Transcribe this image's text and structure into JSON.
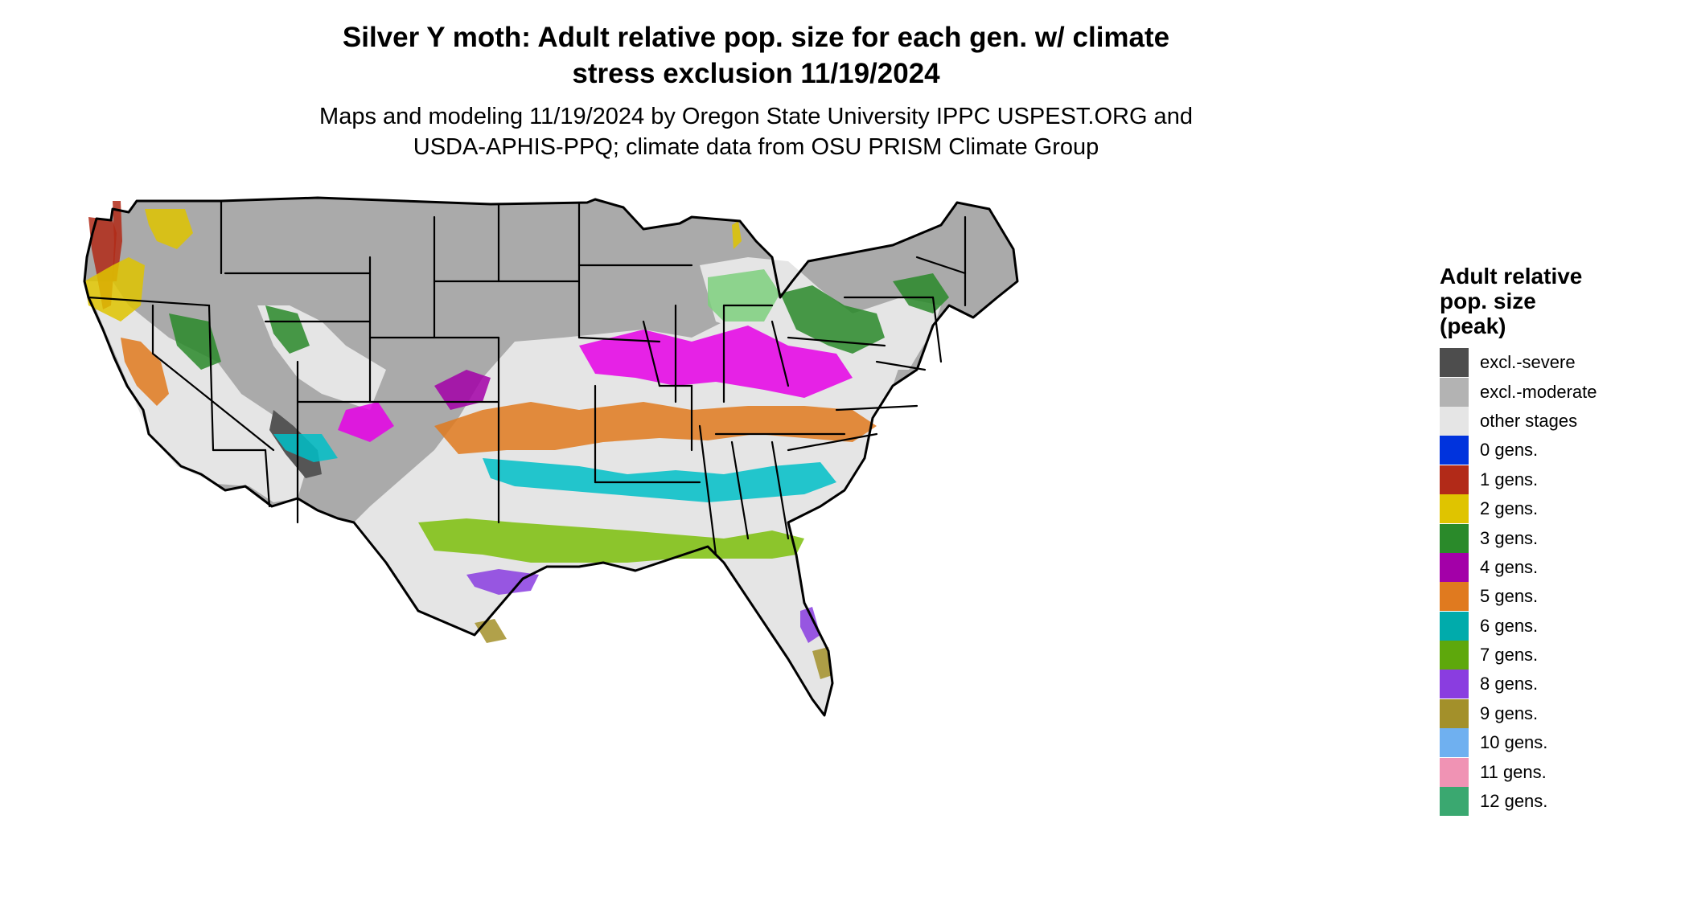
{
  "title_lines": [
    "Silver Y moth: Adult relative pop. size for each gen. w/ climate",
    "stress exclusion 11/19/2024"
  ],
  "subtitle_lines": [
    "Maps and modeling 11/19/2024 by Oregon State University IPPC USPEST.ORG and",
    "USDA-APHIS-PPQ; climate data from OSU PRISM Climate Group"
  ],
  "legend": {
    "title_lines": [
      "Adult relative",
      "pop. size",
      "(peak)"
    ],
    "items": [
      {
        "label": "excl.-severe",
        "color": "#4d4d4d"
      },
      {
        "label": "excl.-moderate",
        "color": "#b3b3b3"
      },
      {
        "label": "other stages",
        "color": "#e5e5e5"
      },
      {
        "label": "0 gens.",
        "color": "#0033dd"
      },
      {
        "label": "1 gens.",
        "color": "#b22a18"
      },
      {
        "label": "2 gens.",
        "color": "#dfc400"
      },
      {
        "label": "3 gens.",
        "color": "#2a8a2a"
      },
      {
        "label": "4 gens.",
        "color": "#a300a8"
      },
      {
        "label": "5 gens.",
        "color": "#e07a1f"
      },
      {
        "label": "6 gens.",
        "color": "#00abab"
      },
      {
        "label": "7 gens.",
        "color": "#5ea80c"
      },
      {
        "label": "8 gens.",
        "color": "#8a3de0"
      },
      {
        "label": "9 gens.",
        "color": "#a3902a"
      },
      {
        "label": "10 gens.",
        "color": "#6fb0f0"
      },
      {
        "label": "11 gens.",
        "color": "#f093b4"
      },
      {
        "label": "12 gens.",
        "color": "#3aa870"
      }
    ]
  },
  "map_colors": {
    "excl_moderate": "#aaaaaa",
    "excl_severe": "#555555",
    "other_stages": "#e5e5e5",
    "gen1": "#b22a18",
    "gen2": "#dfc400",
    "gen3": "#2a8a2a",
    "gen3_light": "#7ed07e",
    "gen4": "#e600e6",
    "gen4_dark": "#a300a8",
    "gen5": "#e07a1f",
    "gen6": "#00c0c8",
    "gen7": "#7cc00c",
    "gen8": "#8a3de0",
    "gen9": "#a3902a",
    "border": "#000000"
  }
}
